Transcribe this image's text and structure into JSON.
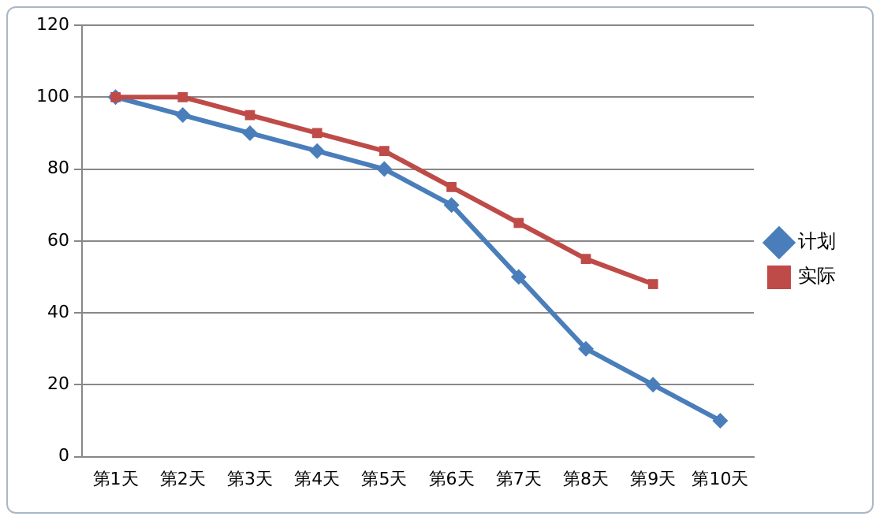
{
  "chart_data": {
    "type": "line",
    "categories": [
      "第1天",
      "第2天",
      "第3天",
      "第4天",
      "第5天",
      "第6天",
      "第7天",
      "第8天",
      "第9天",
      "第10天"
    ],
    "series": [
      {
        "name": "计划",
        "color": "#4a7ebb",
        "marker": "diamond",
        "values": [
          100,
          95,
          90,
          85,
          80,
          70,
          50,
          30,
          20,
          10
        ]
      },
      {
        "name": "实际",
        "color": "#be4b48",
        "marker": "square",
        "values": [
          100,
          100,
          95,
          90,
          85,
          75,
          65,
          55,
          48,
          null
        ]
      }
    ],
    "ylim": [
      0,
      120
    ],
    "yticks": [
      0,
      20,
      40,
      60,
      80,
      100,
      120
    ],
    "grid": "y",
    "legend": "right",
    "line_style": "solid"
  }
}
